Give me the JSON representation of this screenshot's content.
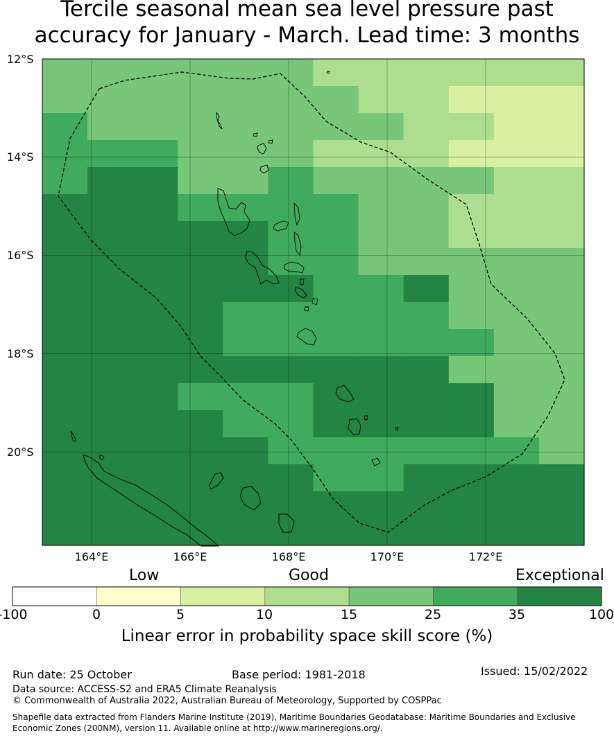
{
  "title_line1": "Tercile seasonal mean sea level pressure past",
  "title_line2": "accuracy for January - March. Lead time: 3 months",
  "map": {
    "lat_labels": [
      "12°S",
      "14°S",
      "16°S",
      "18°S",
      "20°S"
    ],
    "lon_labels": [
      "164°E",
      "166°E",
      "168°E",
      "170°E",
      "172°E"
    ],
    "lat_range": [
      -21.9,
      -12.0
    ],
    "lon_range": [
      163.0,
      174.0
    ],
    "grid": "on",
    "boundary": "dashed (200NM exclusive economic zone)",
    "skill_grid_rows_north_to_south": [
      "444444333333",
      "444444433222",
      "544444443322",
      "555444333222",
      "566445444433",
      "666555544333",
      "666665544333",
      "666665544444",
      "666666556444",
      "666655555444",
      "666655555544",
      "666666666444",
      "666555666644",
      "666655666644",
      "666665555554",
      "666666556666",
      "666666666666",
      "666666666666"
    ]
  },
  "legend": {
    "categories": [
      "Low",
      "Good",
      "Exceptional"
    ],
    "ticks": [
      "-100",
      "0",
      "5",
      "10",
      "15",
      "25",
      "35",
      "100"
    ],
    "colors": [
      "#ffffff",
      "#ffffcc",
      "#d9f0a3",
      "#addd8e",
      "#78c679",
      "#41ab5d",
      "#238443"
    ],
    "title": "Linear error in probability space skill score (%)"
  },
  "footer": {
    "run_date": "Run date: 25 October",
    "base_period": "Base period: 1981-2018",
    "issued": "Issued: 15/02/2022",
    "data_source": "Data source: ACCESS-S2 and ERA5 Climate Reanalysis",
    "copyright": "© Commonwealth of Australia 2022, Australian Bureau of Meteorology, Supported by COSPPac",
    "shapefile_line1": "Shapefile data extracted from Flanders Marine Institute (2019), Maritime Boundaries Geodatabase: Maritime Boundaries and Exclusive",
    "shapefile_line2": "Economic Zones (200NM), version 11. Available online at http://www.marineregions.org/."
  }
}
